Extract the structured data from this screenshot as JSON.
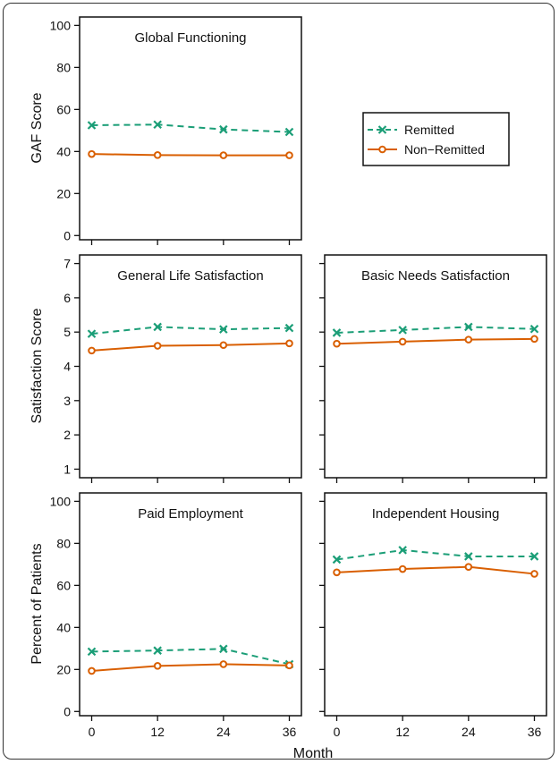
{
  "colors": {
    "remitted": "#1b9e77",
    "non_remitted": "#d95f02",
    "axis": "#111111"
  },
  "legend": {
    "entries": [
      "Remitted",
      "Non−Remitted"
    ],
    "placement": "right of Global Functioning panel"
  },
  "xlabel": "Month",
  "chart_data": [
    {
      "id": "global",
      "type": "line",
      "title": "Global Functioning",
      "ylabel": "GAF Score",
      "ylim": [
        -2,
        104
      ],
      "yticks": [
        0,
        20,
        40,
        60,
        80,
        100
      ],
      "x": [
        0,
        12,
        24,
        36
      ],
      "xticks": [],
      "series": [
        {
          "name": "Remitted",
          "values": [
            52.5,
            52.8,
            50.5,
            49.3
          ]
        },
        {
          "name": "Non−Remitted",
          "values": [
            38.8,
            38.3,
            38.2,
            38.2
          ]
        }
      ]
    },
    {
      "id": "general",
      "type": "line",
      "title": "General Life Satisfaction",
      "ylabel": "Satisfaction Score",
      "ylim": [
        0.75,
        7.25
      ],
      "yticks": [
        1,
        2,
        3,
        4,
        5,
        6,
        7
      ],
      "x": [
        0,
        12,
        24,
        36
      ],
      "xticks": [],
      "series": [
        {
          "name": "Remitted",
          "values": [
            4.95,
            5.15,
            5.08,
            5.12
          ]
        },
        {
          "name": "Non−Remitted",
          "values": [
            4.46,
            4.6,
            4.62,
            4.67
          ]
        }
      ]
    },
    {
      "id": "basic",
      "type": "line",
      "title": "Basic Needs Satisfaction",
      "ylabel": "",
      "ylim": [
        0.75,
        7.25
      ],
      "yticks": [],
      "x": [
        0,
        12,
        24,
        36
      ],
      "xticks": [],
      "series": [
        {
          "name": "Remitted",
          "values": [
            4.98,
            5.06,
            5.15,
            5.09
          ]
        },
        {
          "name": "Non−Remitted",
          "values": [
            4.66,
            4.72,
            4.78,
            4.8
          ]
        }
      ]
    },
    {
      "id": "paid",
      "type": "line",
      "title": "Paid Employment",
      "ylabel": "Percent of Patients",
      "ylim": [
        -2,
        104
      ],
      "yticks": [
        0,
        20,
        40,
        60,
        80,
        100
      ],
      "x": [
        0,
        12,
        24,
        36
      ],
      "xticks": [
        0,
        12,
        24,
        36
      ],
      "series": [
        {
          "name": "Remitted",
          "values": [
            28.5,
            29.0,
            29.8,
            22.5
          ]
        },
        {
          "name": "Non−Remitted",
          "values": [
            19.3,
            21.7,
            22.5,
            21.9
          ]
        }
      ]
    },
    {
      "id": "housing",
      "type": "line",
      "title": "Independent Housing",
      "ylabel": "",
      "ylim": [
        -2,
        104
      ],
      "yticks": [],
      "x": [
        0,
        12,
        24,
        36
      ],
      "xticks": [
        0,
        12,
        24,
        36
      ],
      "series": [
        {
          "name": "Remitted",
          "values": [
            72.3,
            76.8,
            73.8,
            73.8
          ]
        },
        {
          "name": "Non−Remitted",
          "values": [
            66.2,
            67.8,
            68.8,
            65.5
          ]
        }
      ]
    }
  ]
}
